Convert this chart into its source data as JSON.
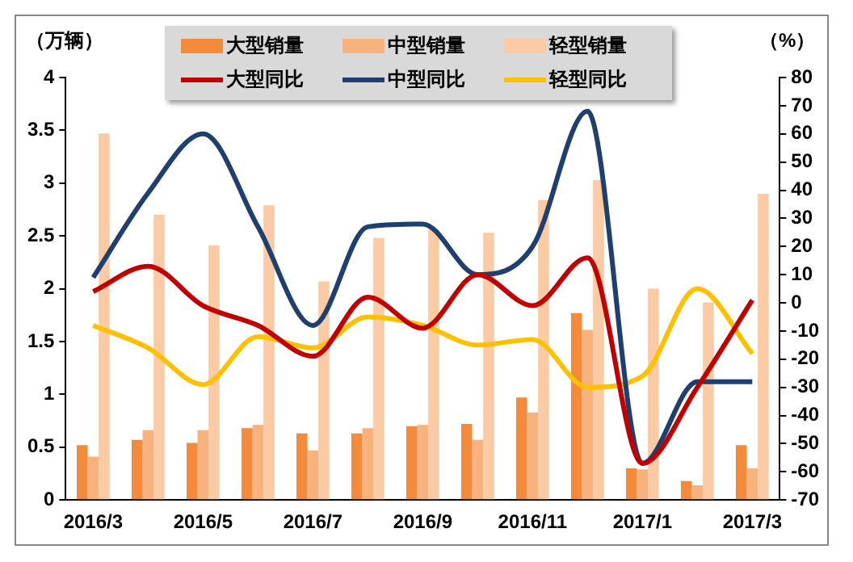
{
  "chart_data": {
    "type": "bar",
    "ylabel": "（万辆）",
    "y2label": "（%）",
    "categories": [
      "2016/3",
      null,
      "2016/5",
      null,
      "2016/7",
      null,
      "2016/9",
      null,
      "2016/11",
      null,
      "2017/1",
      null,
      "2017/3"
    ],
    "series": [
      {
        "name": "大型销量",
        "color": "#f38b3b",
        "values": [
          0.52,
          0.57,
          0.54,
          0.68,
          0.63,
          0.63,
          0.7,
          0.72,
          0.97,
          1.77,
          0.3,
          0.18,
          0.52
        ]
      },
      {
        "name": "中型销量",
        "color": "#f8b27e",
        "values": [
          0.41,
          0.66,
          0.66,
          0.71,
          0.47,
          0.68,
          0.71,
          0.57,
          0.83,
          1.61,
          0.29,
          0.14,
          0.3
        ]
      },
      {
        "name": "轻型销量",
        "color": "#fbcba5",
        "values": [
          3.47,
          2.7,
          2.41,
          2.79,
          2.07,
          2.48,
          2.56,
          2.53,
          2.84,
          3.03,
          2.0,
          1.87,
          2.9
        ]
      },
      {
        "name": "大型同比",
        "type": "line",
        "axis": "y2",
        "color": "#c00000",
        "values": [
          4,
          13,
          -1,
          -8,
          -19,
          2,
          -9,
          10,
          -1,
          16,
          -57,
          -30,
          1
        ]
      },
      {
        "name": "中型同比",
        "type": "line",
        "axis": "y2",
        "color": "#1f3f6e",
        "values": [
          9,
          39,
          60,
          27,
          -8,
          27,
          28,
          10,
          20,
          68,
          -57,
          -28,
          -28
        ]
      },
      {
        "name": "轻型同比",
        "type": "line",
        "axis": "y2",
        "color": "#ffc000",
        "values": [
          -8,
          -16,
          -29,
          -12,
          -16,
          -5,
          -8,
          -15,
          -13,
          -30,
          -26,
          5,
          -18
        ]
      }
    ],
    "ylim": [
      0,
      4
    ],
    "yticks": [
      0,
      0.5,
      1,
      1.5,
      2,
      2.5,
      3,
      3.5,
      4
    ],
    "y2lim": [
      -70,
      80
    ],
    "y2ticks": [
      -70,
      -60,
      -50,
      -40,
      -30,
      -20,
      -10,
      0,
      10,
      20,
      30,
      40,
      50,
      60,
      70,
      80
    ],
    "grid": false,
    "legend": "top",
    "marker": "none"
  }
}
